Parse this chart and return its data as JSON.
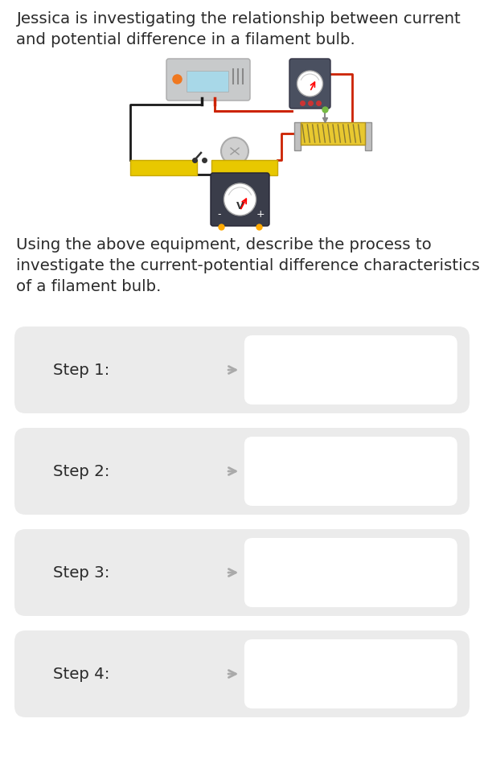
{
  "background_color": "#ffffff",
  "title_text_line1": "Jessica is investigating the relationship between current",
  "title_text_line2": "and potential difference in a filament bulb.",
  "instruction_line1": "Using the above equipment, describe the process to",
  "instruction_line2": "investigate the current-potential difference characteristics",
  "instruction_line3": "of a filament bulb.",
  "steps": [
    "Step 1:",
    "Step 2:",
    "Step 3:",
    "Step 4:"
  ],
  "step_box_color": "#ebebeb",
  "answer_box_color": "#ffffff",
  "text_color": "#2a2a2a",
  "arrow_color": "#aaaaaa",
  "title_fontsize": 14.2,
  "step_fontsize": 14.2,
  "fig_width": 6.02,
  "fig_height": 9.6,
  "circuit_bg": "#ffffff",
  "ps_color": "#c8cacb",
  "ps_screen_color": "#a8d8e8",
  "ps_orange": "#f07820",
  "am_color": "#4a5060",
  "am_face": "#ffffff",
  "rh_body": "#e8c830",
  "rh_coil": "#888840",
  "rh_frame": "#b8b8b8",
  "bulb_color": "#c8c8c8",
  "vm_color": "#3a3d4a",
  "vm_face": "#ffffff",
  "wire_black": "#1a1a1a",
  "wire_red": "#cc2200",
  "yellow_block": "#e8c800",
  "yellow_border": "#c8a800"
}
